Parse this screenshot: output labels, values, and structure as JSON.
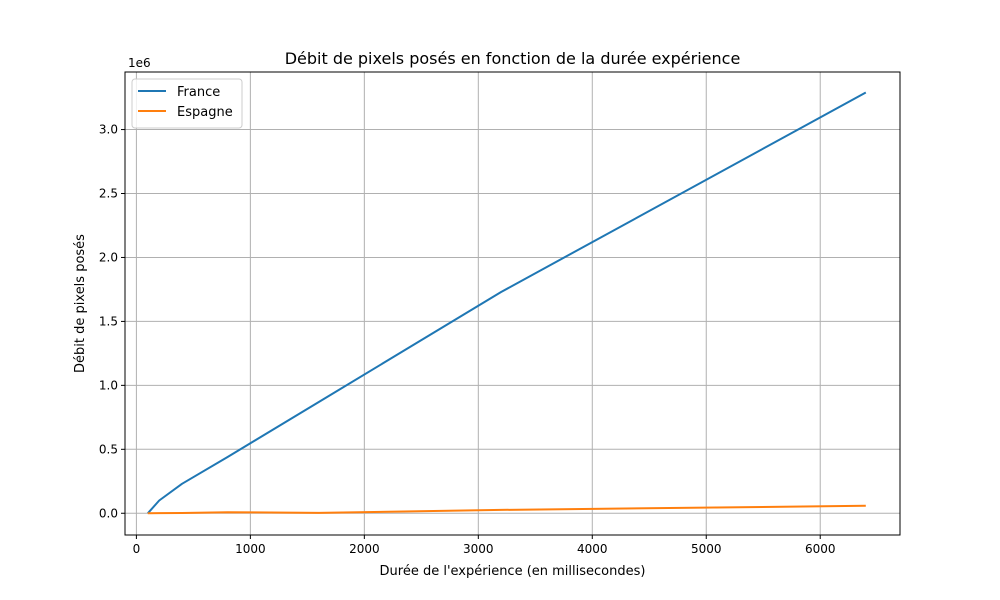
{
  "chart_data": {
    "type": "line",
    "title": "Débit de pixels posés en fonction de la durée expérience",
    "xlabel": "Durée de l'expérience (en millisecondes)",
    "ylabel": "Débit de pixels posés",
    "y_offset_label": "1e6",
    "xlim": [
      -100,
      6700
    ],
    "ylim": [
      -0.17,
      3.45
    ],
    "xticks": [
      0,
      1000,
      2000,
      3000,
      4000,
      5000,
      6000
    ],
    "xtick_labels": [
      "0",
      "1000",
      "2000",
      "3000",
      "4000",
      "5000",
      "6000"
    ],
    "yticks": [
      0.0,
      0.5,
      1.0,
      1.5,
      2.0,
      2.5,
      3.0
    ],
    "ytick_labels": [
      "0.0",
      "0.5",
      "1.0",
      "1.5",
      "2.0",
      "2.5",
      "3.0"
    ],
    "grid": true,
    "legend_position": "top-left",
    "series": [
      {
        "name": "France",
        "color": "#1f77b4",
        "x": [
          100,
          200,
          400,
          800,
          1600,
          3200,
          6400
        ],
        "y": [
          0.0,
          0.1,
          0.23,
          0.44,
          0.87,
          1.73,
          3.29
        ]
      },
      {
        "name": "Espagne",
        "color": "#ff7f0e",
        "x": [
          100,
          200,
          400,
          800,
          1600,
          3200,
          6400
        ],
        "y": [
          0.0,
          0.001,
          0.002,
          0.008,
          0.003,
          0.026,
          0.058
        ]
      }
    ]
  }
}
